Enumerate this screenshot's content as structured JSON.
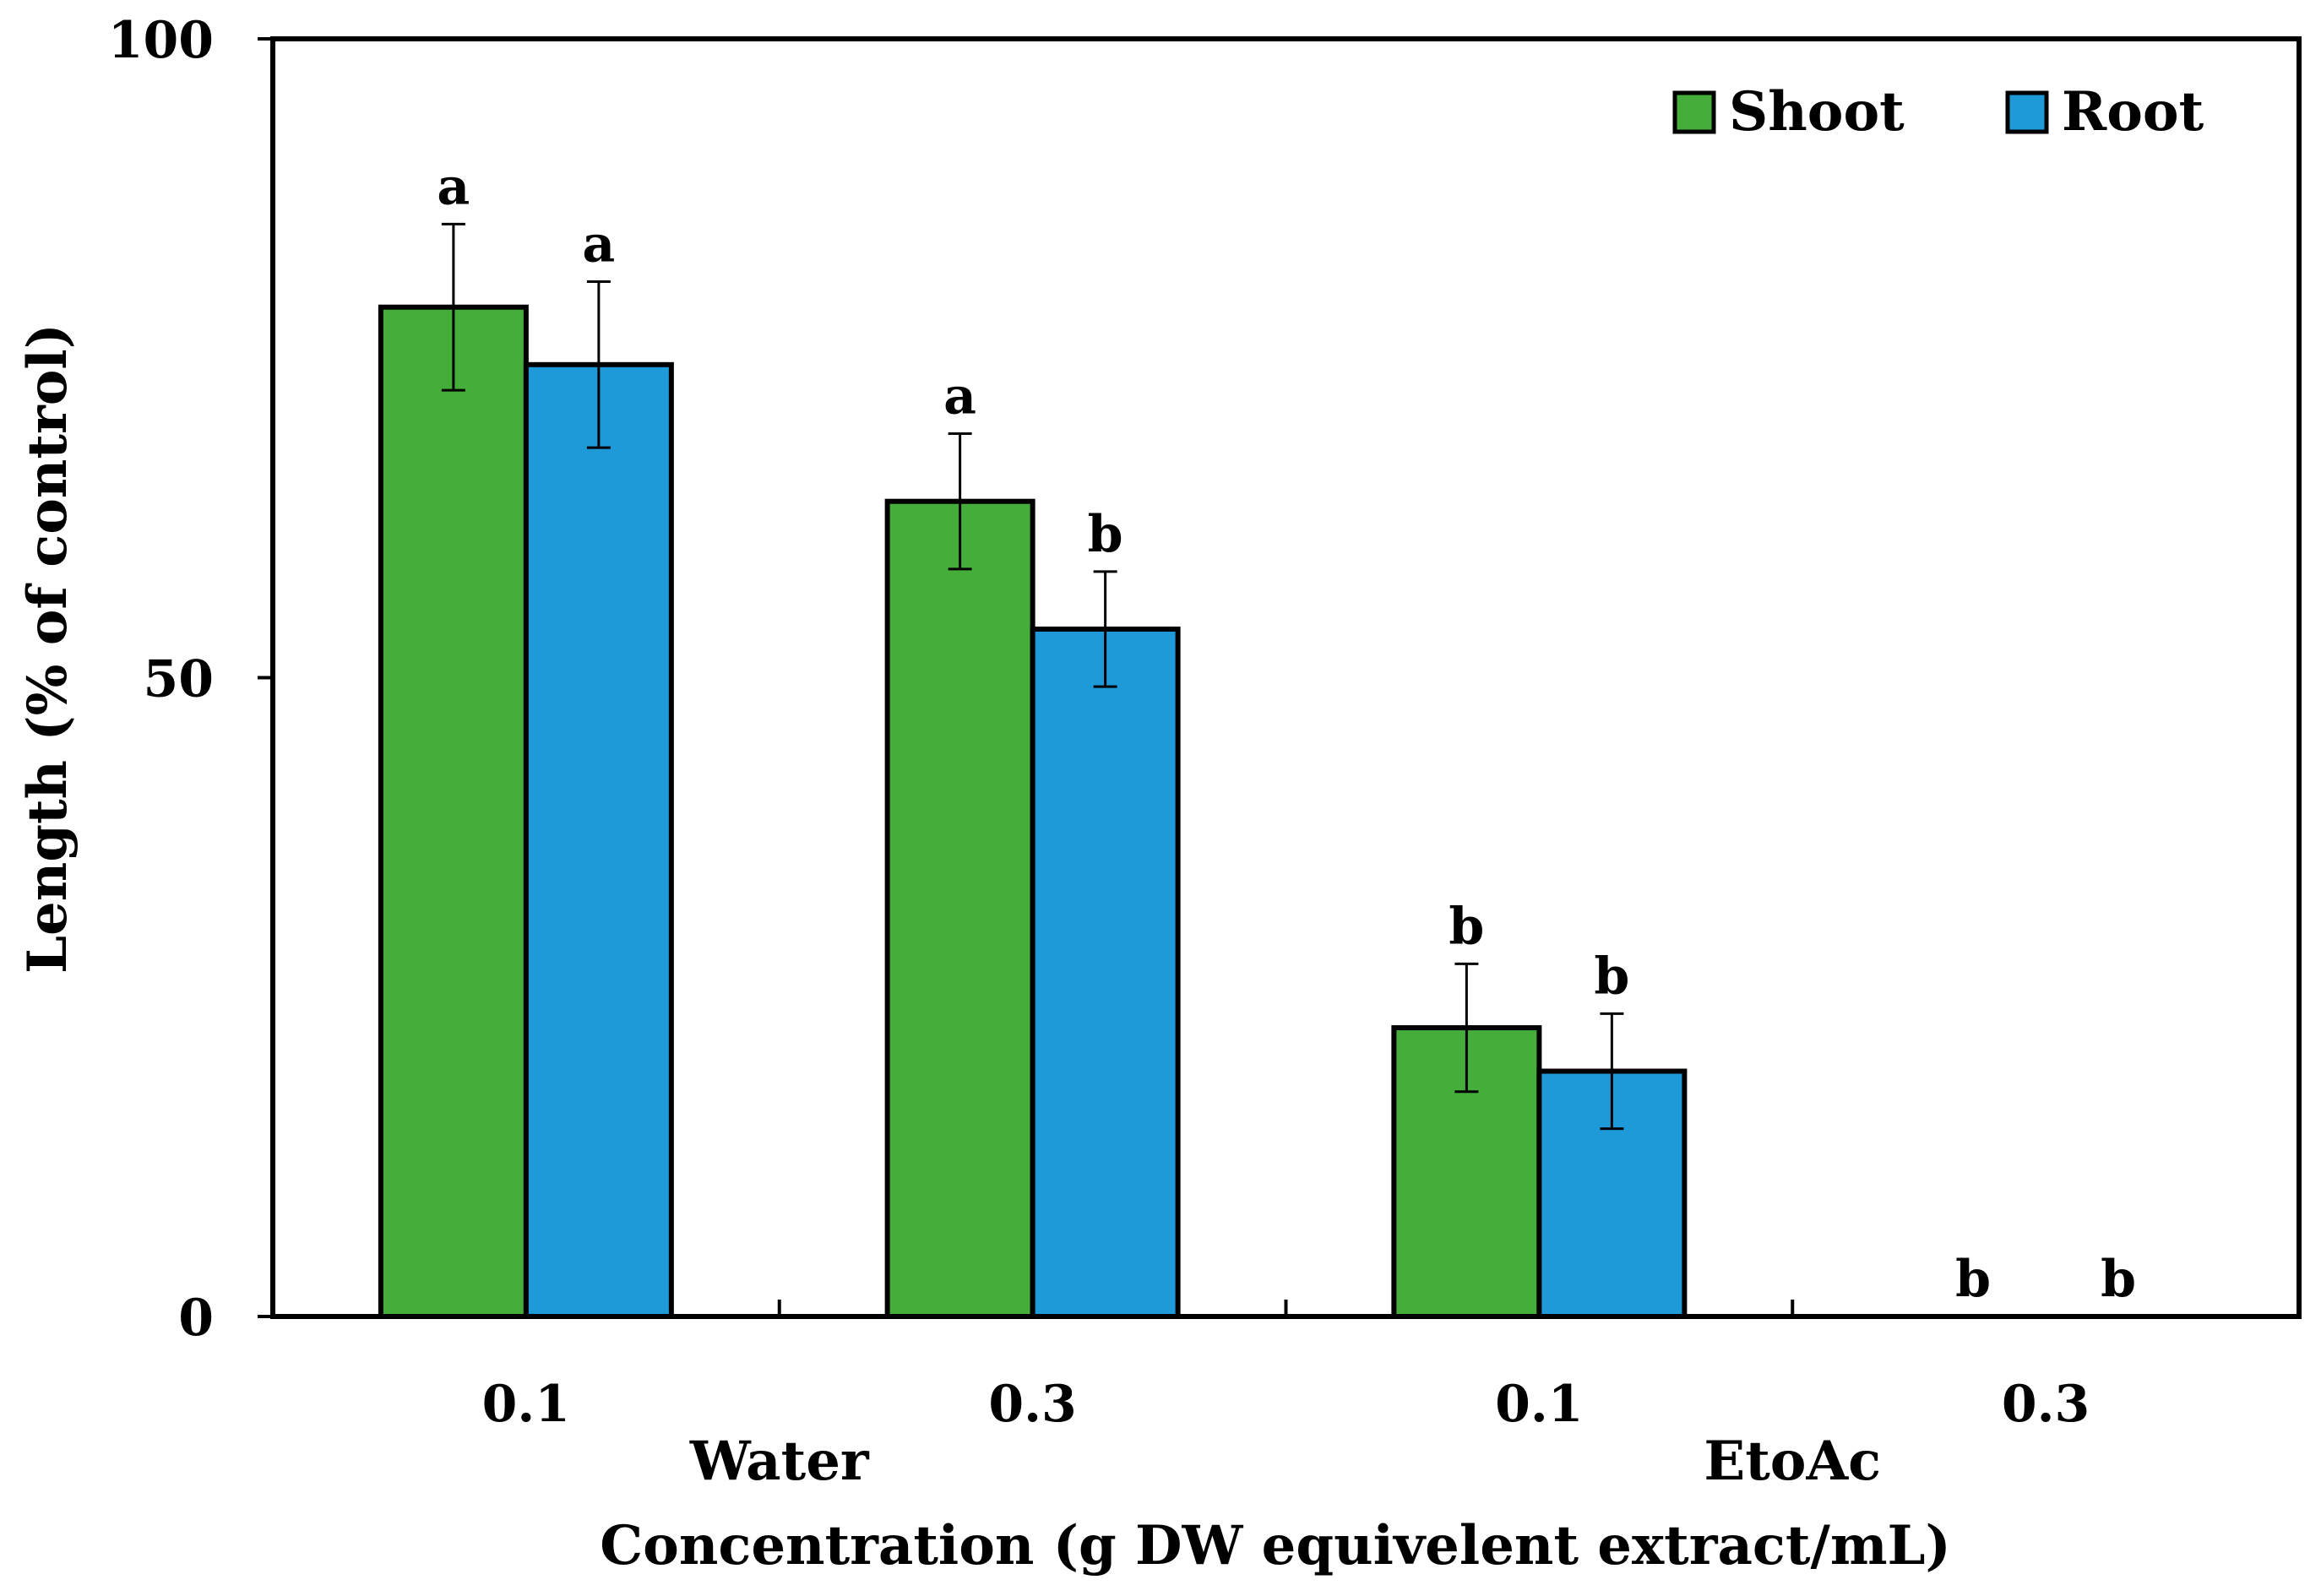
{
  "chart_data": {
    "type": "bar",
    "ylabel": "Length (% of control)",
    "xlabel": "Concentration (g DW equivelent extract/mL)",
    "ylim": [
      0,
      100
    ],
    "yticks": [
      "0",
      "50",
      "100"
    ],
    "categories": [
      "0.1",
      "0.3",
      "0.1",
      "0.3"
    ],
    "groups": [
      {
        "label": "Water",
        "span": [
          0,
          1
        ]
      },
      {
        "label": "EtoAc",
        "span": [
          2,
          3
        ]
      }
    ],
    "series": [
      {
        "name": "Shoot",
        "color": "#45AE3A",
        "values": [
          79,
          63.8,
          22.6,
          0
        ],
        "errors": [
          6.5,
          5.3,
          5.0,
          0
        ],
        "letters": [
          "a",
          "a",
          "b",
          "b"
        ]
      },
      {
        "name": "Root",
        "color": "#1E9AD8",
        "values": [
          74.5,
          53.8,
          19.2,
          0
        ],
        "errors": [
          6.5,
          4.5,
          4.5,
          0
        ],
        "letters": [
          "a",
          "b",
          "b",
          "b"
        ]
      }
    ],
    "legend_position": "top-right",
    "grid": false
  }
}
